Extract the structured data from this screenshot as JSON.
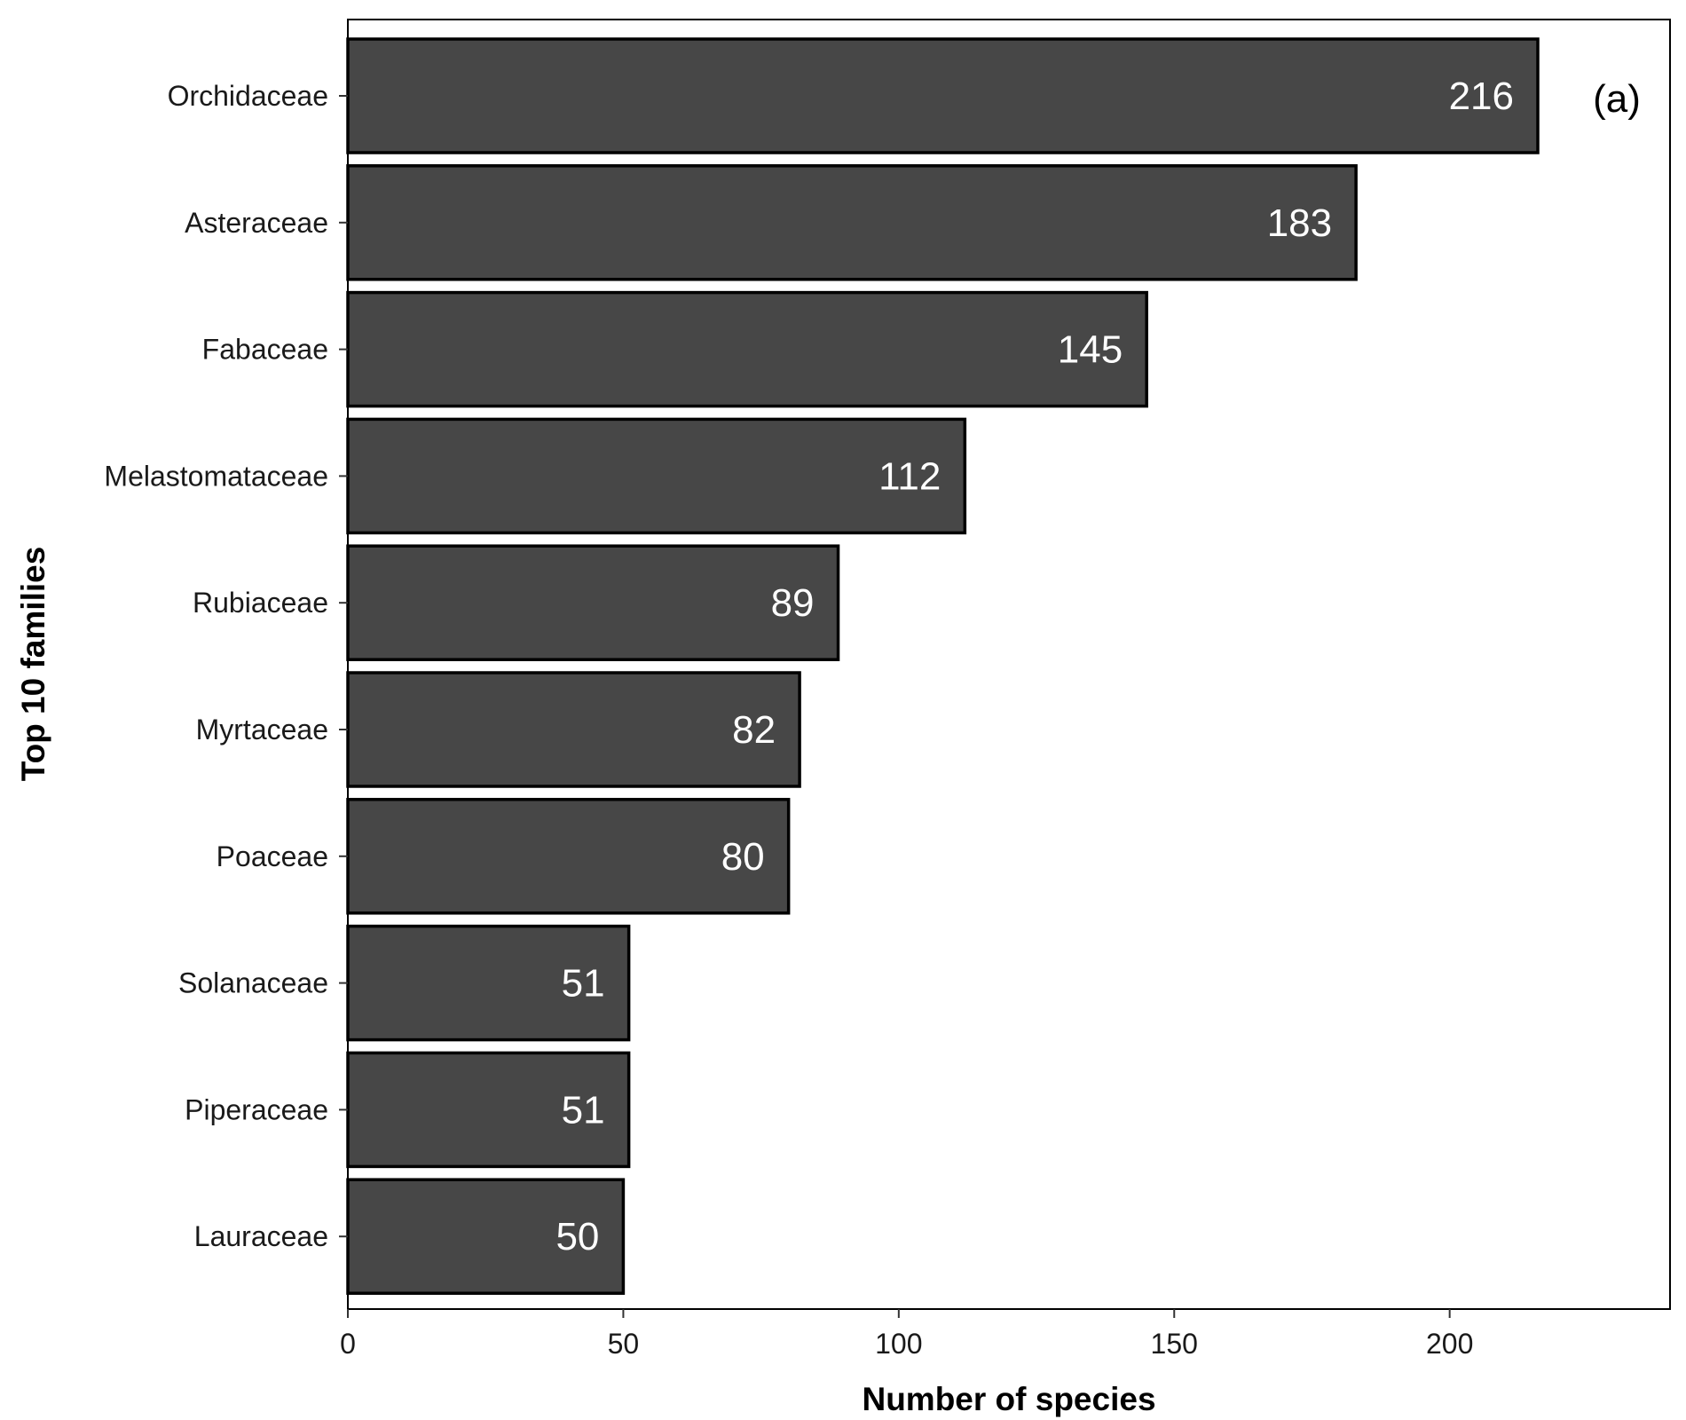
{
  "chart_data": {
    "type": "bar",
    "orientation": "horizontal",
    "categories": [
      "Orchidaceae",
      "Asteraceae",
      "Fabaceae",
      "Melastomataceae",
      "Rubiaceae",
      "Myrtaceae",
      "Poaceae",
      "Solanaceae",
      "Piperaceae",
      "Lauraceae"
    ],
    "values": [
      216,
      183,
      145,
      112,
      89,
      82,
      80,
      51,
      51,
      50
    ],
    "data_labels": [
      "216",
      "183",
      "145",
      "112",
      "89",
      "82",
      "80",
      "51",
      "51",
      "50"
    ],
    "xlabel": "Number of species",
    "ylabel": "Top 10 families",
    "xlim": [
      0,
      240
    ],
    "xticks": [
      0,
      50,
      100,
      150,
      200
    ],
    "xtick_labels": [
      "0",
      "50",
      "100",
      "150",
      "200"
    ],
    "panel_label": "(a)",
    "grid": false,
    "bar_color": "#474747",
    "bar_edge_color": "#000000"
  }
}
